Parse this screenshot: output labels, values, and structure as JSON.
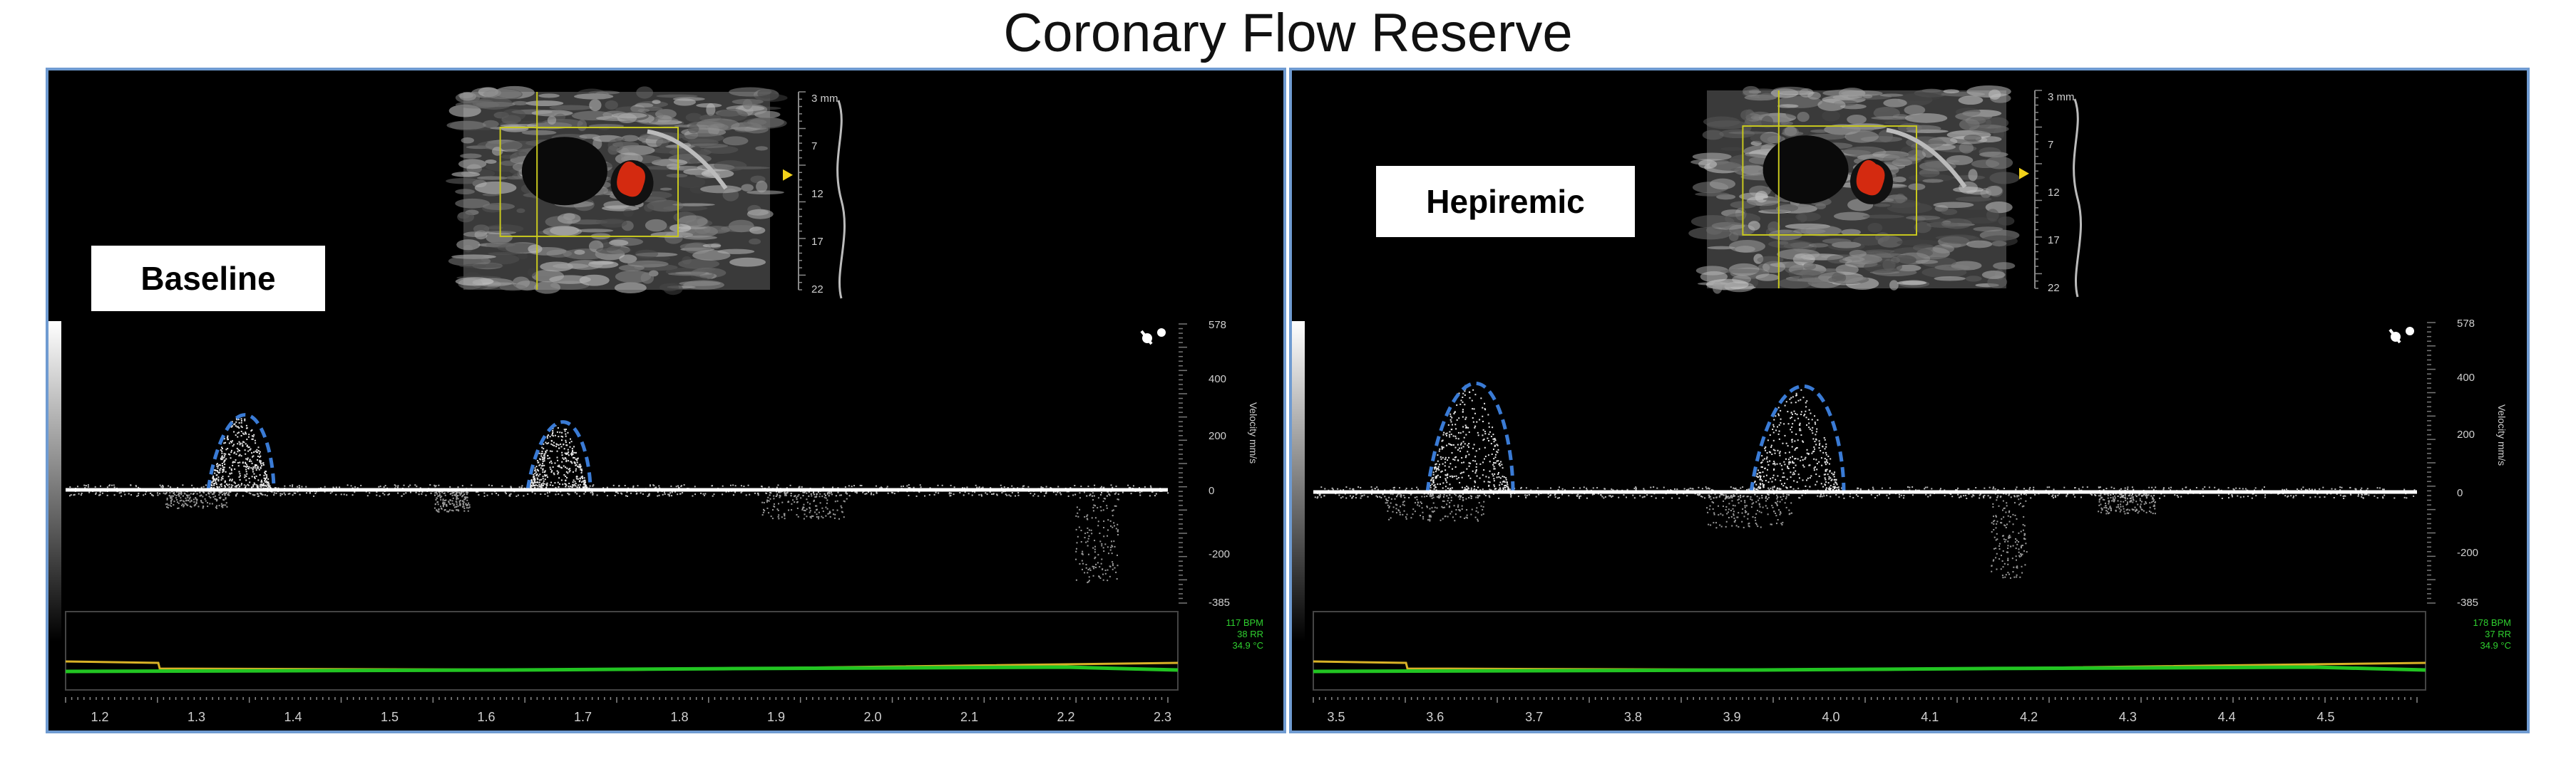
{
  "title": "Coronary Flow Reserve",
  "colors": {
    "panel_border": "#6f9bd1",
    "envelope_trace": "#3a7bd5",
    "heart_rate_line": "#22c422",
    "temperature_line": "#d9b227",
    "doppler_signal": "#e8e8e8",
    "flow_color": "#d42a10"
  },
  "panels": [
    {
      "label": "Baseline",
      "depth_ticks": [
        "3 mm",
        "7",
        "12",
        "17",
        "22"
      ],
      "velocity_ticks": [
        "578",
        "400",
        "200",
        "0",
        "-200",
        "-385"
      ],
      "velocity_axis_label": "Velocity mm/s",
      "physio_readout": [
        "117 BPM",
        "38 RR",
        "34.9 °C"
      ],
      "time_ticks": [
        "1.2",
        "1.3",
        "1.4",
        "1.5",
        "1.6",
        "1.7",
        "1.8",
        "1.9",
        "2.0",
        "2.1",
        "2.2",
        "2.3"
      ]
    },
    {
      "label": "Hepiremic",
      "depth_ticks": [
        "3 mm",
        "7",
        "12",
        "17",
        "22"
      ],
      "velocity_ticks": [
        "578",
        "400",
        "200",
        "0",
        "-200",
        "-385"
      ],
      "velocity_axis_label": "Velocity mm/s",
      "physio_readout": [
        "178 BPM",
        "37 RR",
        "34.9 °C"
      ],
      "time_ticks": [
        "3.5",
        "3.6",
        "3.7",
        "3.8",
        "3.9",
        "4.0",
        "4.1",
        "4.2",
        "4.3",
        "4.4",
        "4.5"
      ]
    }
  ]
}
